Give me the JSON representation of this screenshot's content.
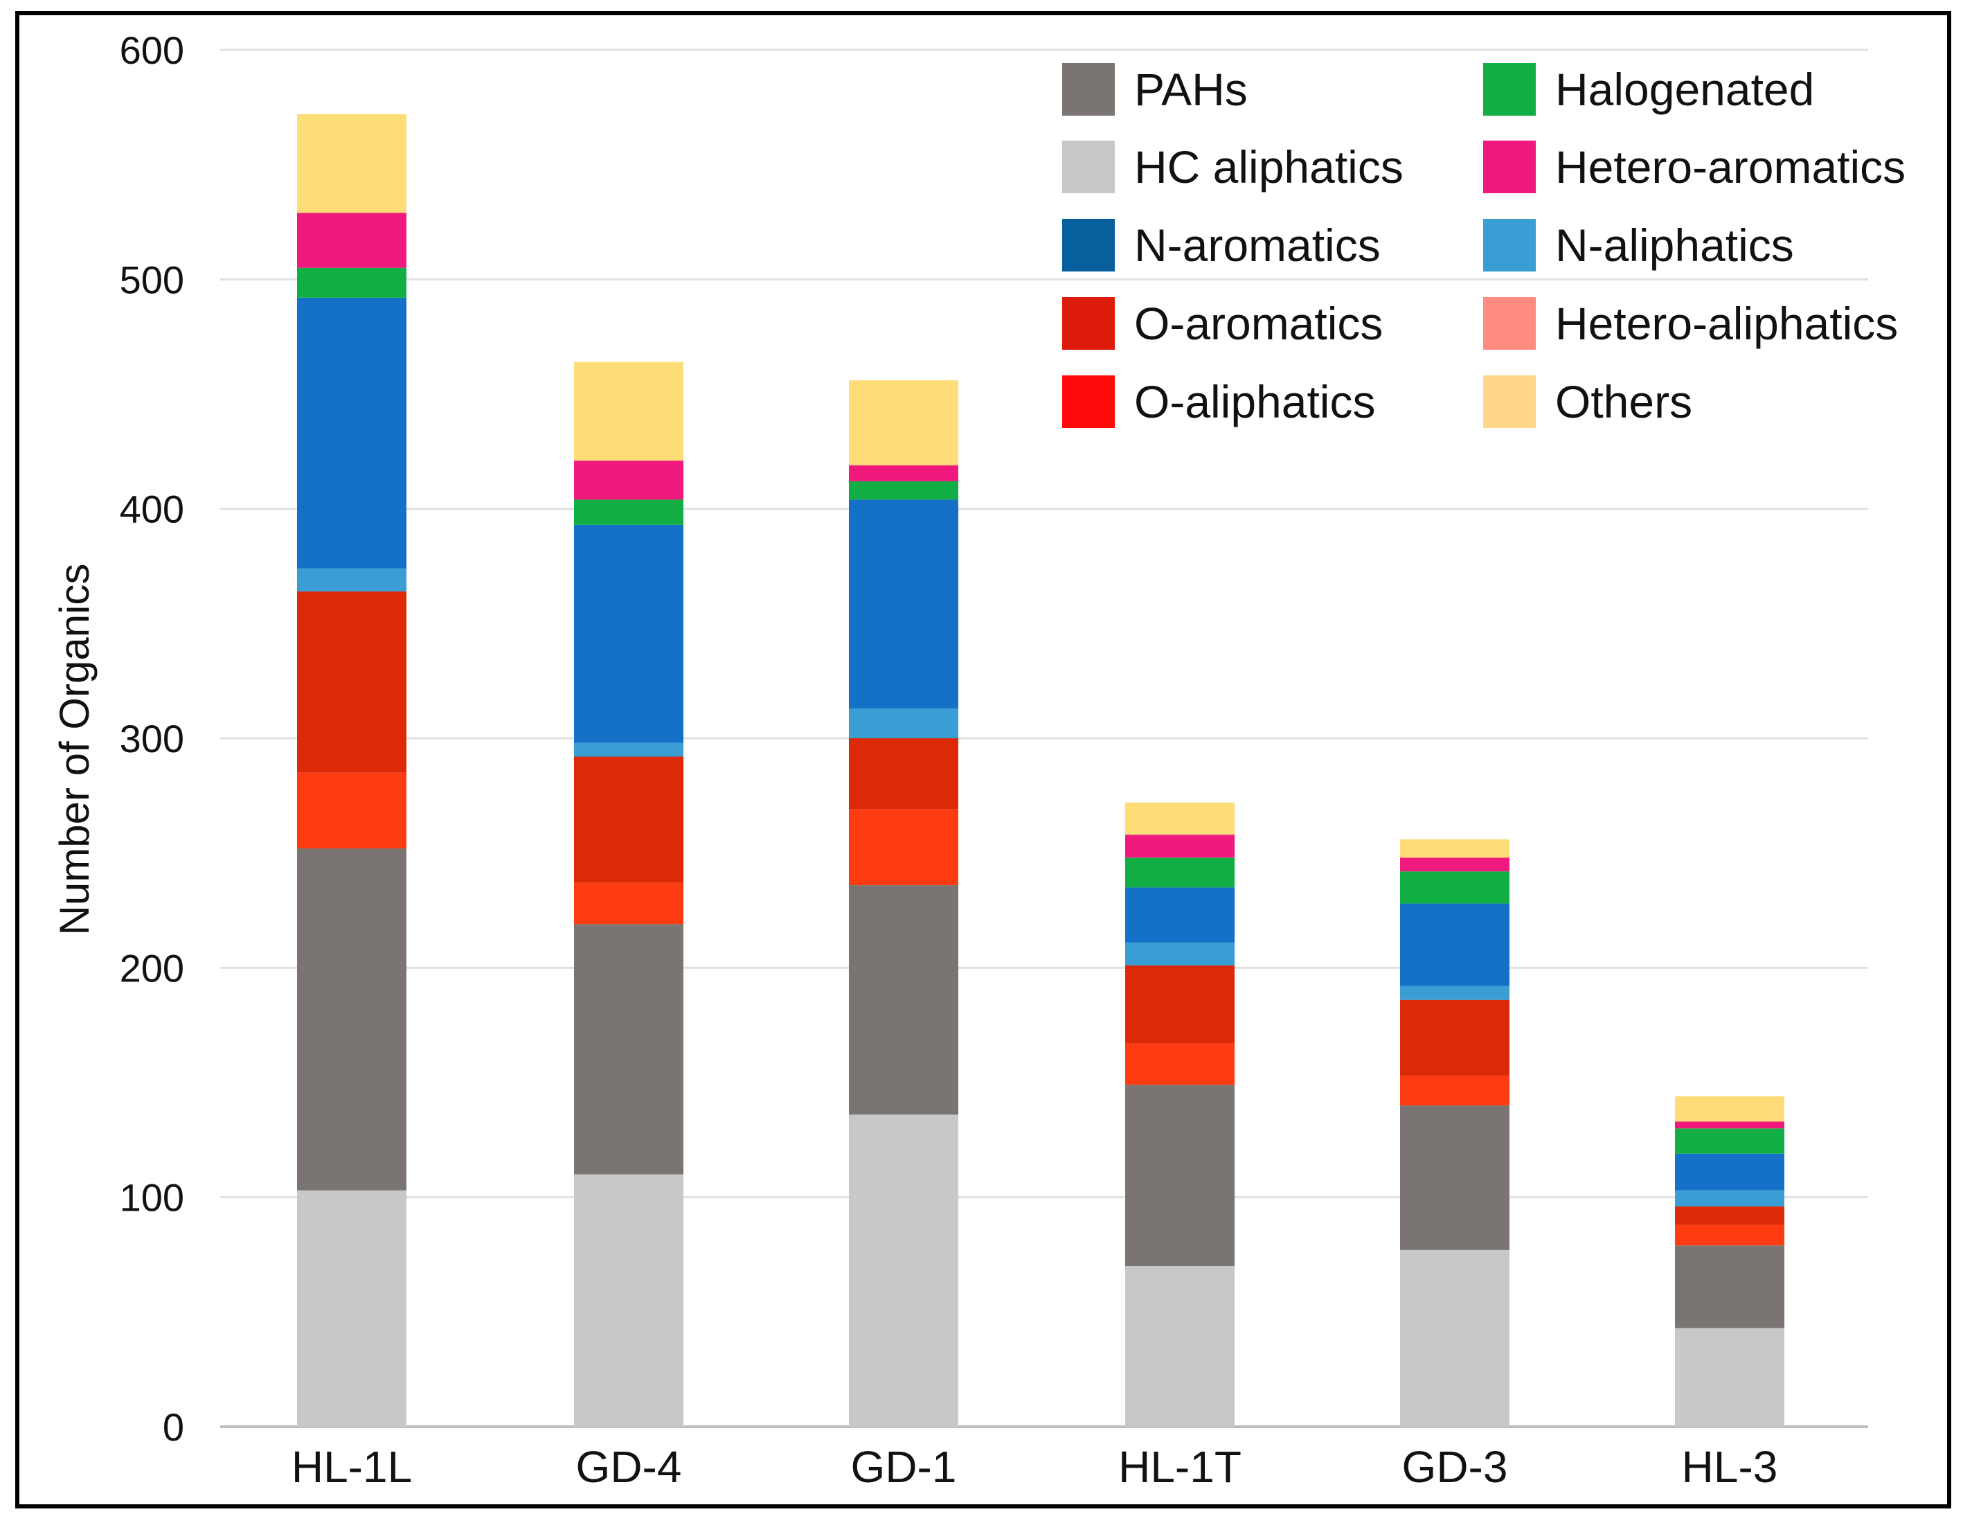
{
  "chart_data": {
    "type": "bar",
    "stacked": true,
    "title": "",
    "xlabel": "",
    "ylabel": "Number of Organics",
    "ylim": [
      0,
      600
    ],
    "yticks": [
      0,
      100,
      200,
      300,
      400,
      500,
      600
    ],
    "grid": true,
    "legend_position": "top-right",
    "categories": [
      "HL-1L",
      "GD-4",
      "GD-1",
      "HL-1T",
      "GD-3",
      "HL-3"
    ],
    "series": [
      {
        "name": "HC aliphatics",
        "color": "#C8C8C8",
        "values": [
          103,
          110,
          136,
          70,
          77,
          43
        ]
      },
      {
        "name": "PAHs",
        "color": "#7A7573",
        "values": [
          149,
          109,
          100,
          79,
          63,
          36
        ]
      },
      {
        "name": "O-aliphatics",
        "color": "#FF3B12",
        "values": [
          33,
          18,
          33,
          18,
          13,
          9
        ]
      },
      {
        "name": "O-aromatics",
        "color": "#DC2A08",
        "values": [
          79,
          55,
          31,
          34,
          33,
          8
        ]
      },
      {
        "name": "Hetero-aliphatics",
        "color": "#FF8C80",
        "values": [
          0,
          0,
          0,
          0,
          0,
          0
        ]
      },
      {
        "name": "N-aliphatics",
        "color": "#3A9DD4",
        "values": [
          10,
          6,
          13,
          10,
          6,
          7
        ]
      },
      {
        "name": "N-aromatics",
        "color": "#1570C8",
        "values": [
          118,
          95,
          91,
          24,
          36,
          16
        ]
      },
      {
        "name": "Halogenated",
        "color": "#11AD45",
        "values": [
          13,
          11,
          8,
          13,
          14,
          11
        ]
      },
      {
        "name": "Hetero-aromatics",
        "color": "#F01A7E",
        "values": [
          24,
          17,
          7,
          10,
          6,
          3
        ]
      },
      {
        "name": "Others",
        "color": "#FEDD78",
        "values": [
          43,
          43,
          37,
          14,
          8,
          11
        ]
      }
    ],
    "legend": [
      {
        "name": "PAHs",
        "color": "#7A7573"
      },
      {
        "name": "Halogenated",
        "color": "#11AD45"
      },
      {
        "name": "HC aliphatics",
        "color": "#C8C8C8"
      },
      {
        "name": "Hetero-aromatics",
        "color": "#F01A7E"
      },
      {
        "name": "N-aromatics",
        "color": "#075F9E"
      },
      {
        "name": "N-aliphatics",
        "color": "#3A9DD4"
      },
      {
        "name": "O-aromatics",
        "color": "#DC1B0A"
      },
      {
        "name": "Hetero-aliphatics",
        "color": "#FF8C80"
      },
      {
        "name": "O-aliphatics",
        "color": "#FF0A0A"
      },
      {
        "name": "Others",
        "color": "#FED78A"
      }
    ]
  }
}
